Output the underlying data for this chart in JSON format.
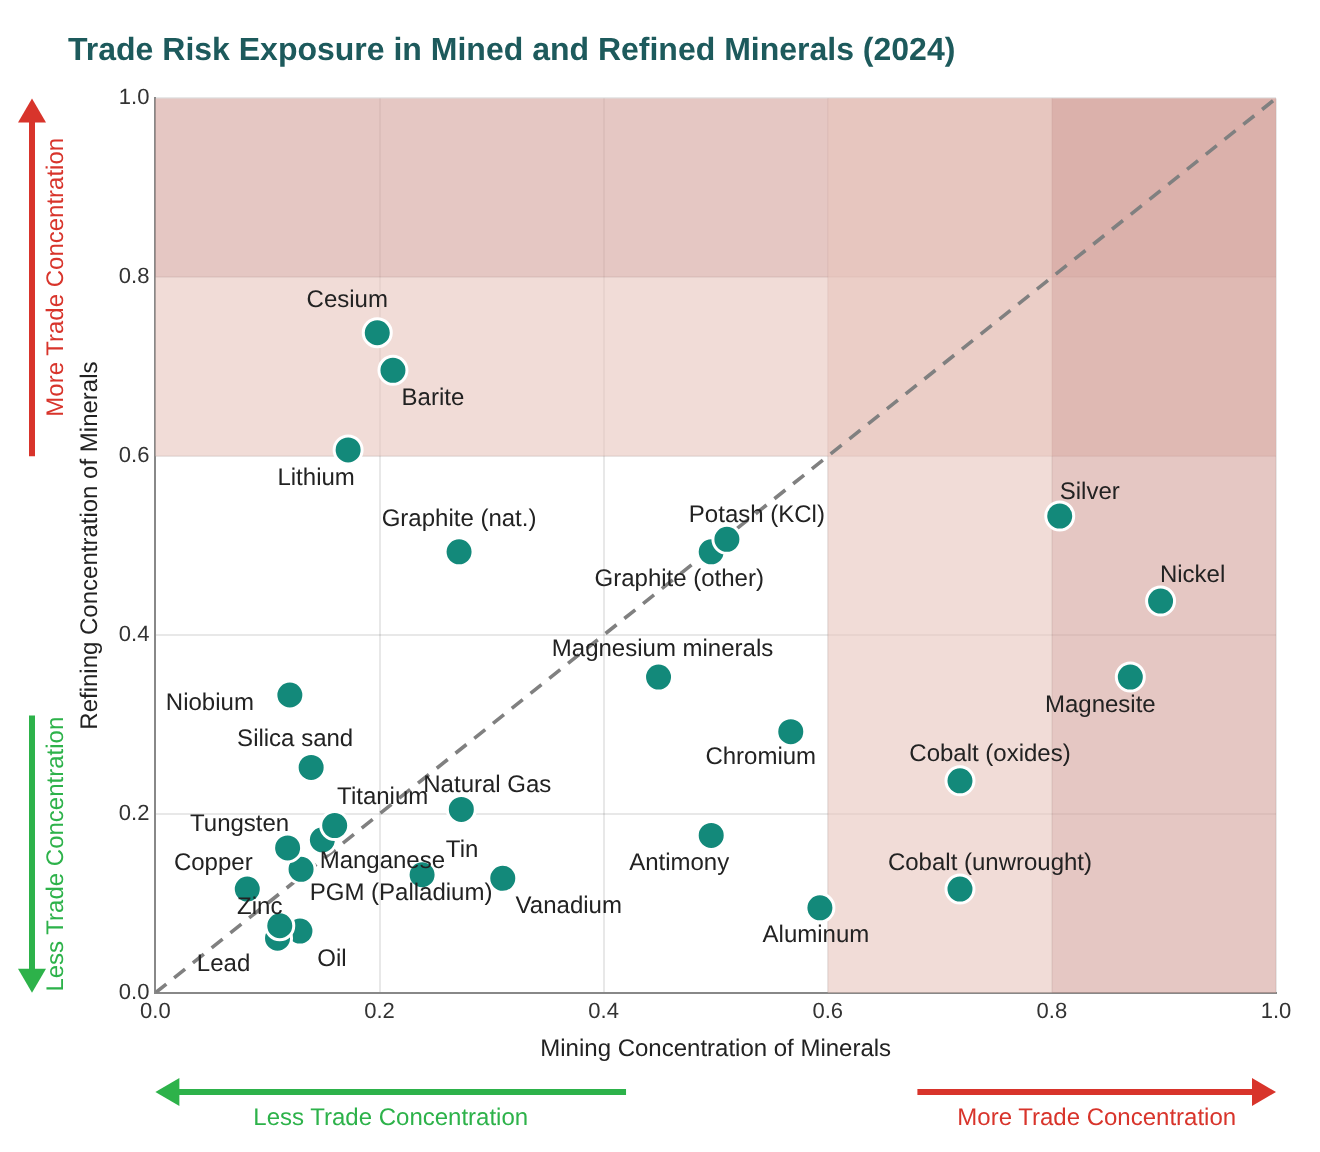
{
  "chart_data": {
    "type": "scatter",
    "title": "Trade Risk Exposure in Mined and Refined Minerals (2024)",
    "xlabel": "Mining Concentration of Minerals",
    "ylabel": "Refining Concentration of Minerals",
    "xlim": [
      0,
      1
    ],
    "ylim": [
      0,
      1
    ],
    "xticks": [
      {
        "value": 0,
        "label": "0.0"
      },
      0.2,
      0.4,
      0.6,
      0.8,
      {
        "value": 1,
        "label": "1.0"
      }
    ],
    "yticks": [
      {
        "value": 0,
        "label": "0.0"
      },
      0.2,
      0.4,
      0.6,
      0.8,
      {
        "value": 1,
        "label": "1.0"
      }
    ],
    "grid": true,
    "legend": false,
    "marker": "circle",
    "annotations": [
      "More Trade Concentration",
      "Less Trade Concentration",
      "Less Trade Concentration",
      "More Trade Concentration"
    ],
    "bands": [
      {
        "axis": "y",
        "from": 0.6,
        "to": 0.8,
        "color": "#e8c4bd"
      },
      {
        "axis": "y",
        "from": 0.8,
        "to": 1,
        "color": "#d4a29b"
      },
      {
        "axis": "x",
        "from": 0.6,
        "to": 0.8,
        "color": "#e8c4bd"
      },
      {
        "axis": "x",
        "from": 0.8,
        "to": 1,
        "color": "#d4a29b"
      }
    ],
    "series": [
      {
        "type": "line",
        "color": "#808080",
        "line_style": "dashed",
        "marker": "none",
        "x": [
          0,
          1
        ],
        "values": [
          0,
          1
        ]
      },
      {
        "name": "Cesium",
        "color": "#13897a",
        "x": [
          0.198
        ],
        "values": [
          0.738
        ]
      },
      {
        "name": "Barite",
        "color": "#13897a",
        "x": [
          0.212
        ],
        "values": [
          0.696
        ]
      },
      {
        "name": "Lithium",
        "color": "#13897a",
        "x": [
          0.172
        ],
        "values": [
          0.607
        ]
      },
      {
        "name": "Graphite (nat.)",
        "color": "#13897a",
        "x": [
          0.271
        ],
        "values": [
          0.493
        ]
      },
      {
        "name": "Niobium",
        "color": "#13897a",
        "x": [
          0.12
        ],
        "values": [
          0.333
        ]
      },
      {
        "name": "Silica sand",
        "color": "#13897a",
        "x": [
          0.139
        ],
        "values": [
          0.252
        ]
      },
      {
        "name": "Titanium",
        "color": "#13897a",
        "x": [
          0.16
        ],
        "values": [
          0.187
        ]
      },
      {
        "name": "Manganese",
        "color": "#13897a",
        "x": [
          0.149
        ],
        "values": [
          0.171
        ]
      },
      {
        "name": "Tungsten",
        "color": "#13897a",
        "x": [
          0.118
        ],
        "values": [
          0.162
        ]
      },
      {
        "name": "PGM (Palladium)",
        "color": "#13897a",
        "x": [
          0.13
        ],
        "values": [
          0.138
        ]
      },
      {
        "name": "Copper",
        "color": "#13897a",
        "x": [
          0.082
        ],
        "values": [
          0.116
        ]
      },
      {
        "name": "Zinc",
        "color": "#13897a",
        "x": [
          0.111
        ],
        "values": [
          0.075
        ]
      },
      {
        "name": "Lead",
        "color": "#13897a",
        "x": [
          0.109
        ],
        "values": [
          0.061
        ]
      },
      {
        "name": "Oil",
        "color": "#13897a",
        "x": [
          0.129
        ],
        "values": [
          0.069
        ]
      },
      {
        "name": "Natural Gas",
        "color": "#13897a",
        "x": [
          0.273
        ],
        "values": [
          0.205
        ]
      },
      {
        "name": "Tin",
        "color": "#13897a",
        "x": [
          0.238
        ],
        "values": [
          0.132
        ]
      },
      {
        "name": "Vanadium",
        "color": "#13897a",
        "x": [
          0.31
        ],
        "values": [
          0.128
        ]
      },
      {
        "name": "Magnesium minerals",
        "color": "#13897a",
        "x": [
          0.449
        ],
        "values": [
          0.353
        ]
      },
      {
        "name": "Potash (KCl)",
        "color": "#13897a",
        "x": [
          0.51
        ],
        "values": [
          0.507
        ]
      },
      {
        "name": "Graphite (other)",
        "color": "#13897a",
        "x": [
          0.496
        ],
        "values": [
          0.493
        ]
      },
      {
        "name": "Chromium",
        "color": "#13897a",
        "x": [
          0.567
        ],
        "values": [
          0.292
        ]
      },
      {
        "name": "Antimony",
        "color": "#13897a",
        "x": [
          0.496
        ],
        "values": [
          0.176
        ]
      },
      {
        "name": "Aluminum",
        "color": "#13897a",
        "x": [
          0.593
        ],
        "values": [
          0.095
        ]
      },
      {
        "name": "Silver",
        "color": "#13897a",
        "x": [
          0.807
        ],
        "values": [
          0.533
        ]
      },
      {
        "name": "Nickel",
        "color": "#13897a",
        "x": [
          0.897
        ],
        "values": [
          0.438
        ]
      },
      {
        "name": "Magnesite",
        "color": "#13897a",
        "x": [
          0.87
        ],
        "values": [
          0.353
        ]
      },
      {
        "name": "Cobalt (oxides)",
        "color": "#13897a",
        "x": [
          0.718
        ],
        "values": [
          0.237
        ]
      },
      {
        "name": "Cobalt (unwrought)",
        "color": "#13897a",
        "x": [
          0.718
        ],
        "values": [
          0.116
        ]
      }
    ]
  }
}
